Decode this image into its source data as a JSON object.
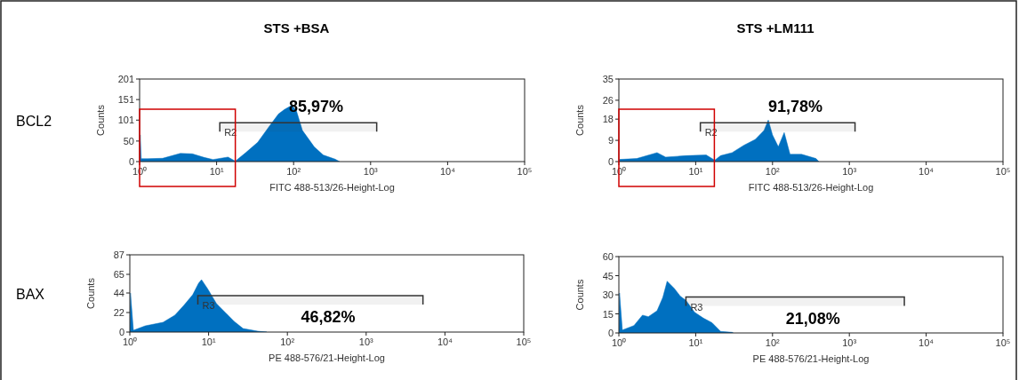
{
  "chart_data": [
    {
      "type": "area",
      "title": "STS +BSA",
      "xlabel": "FITC 488-513/26-Height-Log",
      "ylabel": "Counts",
      "log": "x",
      "xlim": [
        1,
        100000
      ],
      "xticks": [
        {
          "value": 1,
          "label": "10⁰"
        },
        {
          "value": 10,
          "label": "10¹"
        },
        {
          "value": 100,
          "label": "10²"
        },
        {
          "value": 1000,
          "label": "10³"
        },
        {
          "value": 10000,
          "label": "10⁴"
        },
        {
          "value": 100000,
          "label": "10⁵"
        }
      ],
      "ylim": [
        0,
        201
      ],
      "yticks": [
        0,
        50,
        101,
        151,
        201
      ],
      "x": [
        1,
        1.02,
        1.05,
        1.27,
        1.99,
        3.38,
        4.83,
        6.9,
        9.0,
        14.1,
        17.5,
        24,
        34.2,
        48.8,
        63.7,
        76.2,
        95,
        109,
        130,
        185,
        242,
        346,
        395
      ],
      "series": [
        {
          "color": "#0070c0",
          "values": [
            0,
            65,
            7,
            7,
            8,
            20,
            19,
            10,
            5,
            11,
            1,
            22,
            47,
            87,
            116,
            127,
            137,
            123,
            76,
            36,
            16,
            6,
            0
          ]
        }
      ],
      "bands": [
        {
          "axis": "x",
          "from": 11,
          "to": 1200,
          "label": "R2"
        }
      ],
      "annotations": [
        "85,97%",
        "BCL2"
      ]
    },
    {
      "type": "area",
      "title": "STS +LM111",
      "xlabel": "FITC 488-513/26-Height-Log",
      "ylabel": "Counts",
      "log": "x",
      "xlim": [
        1,
        100000
      ],
      "xticks": [
        {
          "value": 1,
          "label": "10⁰"
        },
        {
          "value": 10,
          "label": "10¹"
        },
        {
          "value": 100,
          "label": "10²"
        },
        {
          "value": 1000,
          "label": "10³"
        },
        {
          "value": 10000,
          "label": "10⁴"
        },
        {
          "value": 100000,
          "label": "10⁵"
        }
      ],
      "ylim": [
        0,
        35
      ],
      "yticks": [
        0,
        9,
        18,
        26,
        35
      ],
      "x": [
        1,
        1.02,
        1.71,
        3.14,
        4.07,
        7.46,
        13.7,
        17.7,
        21.1,
        29.8,
        42.2,
        59.7,
        77.4,
        88.1,
        100,
        119,
        142,
        169,
        239,
        368,
        401
      ],
      "series": [
        {
          "color": "#0070c0",
          "values": [
            0,
            0.9,
            1.3,
            3.8,
            1.9,
            2.5,
            2.8,
            0.6,
            2.5,
            3.8,
            6.9,
            9.4,
            13.2,
            17.6,
            11.3,
            6.3,
            12.3,
            3.1,
            3.1,
            1.3,
            0
          ]
        }
      ],
      "bands": [
        {
          "axis": "x",
          "from": 11.5,
          "to": 1186,
          "label": "R2"
        }
      ],
      "annotations": [
        "91,78%"
      ]
    },
    {
      "type": "area",
      "xlabel": "PE 488-576/21-Height-Log",
      "ylabel": "Counts",
      "log": "x",
      "xlim": [
        1,
        100000
      ],
      "xticks": [
        {
          "value": 1,
          "label": "10⁰"
        },
        {
          "value": 10,
          "label": "10¹"
        },
        {
          "value": 100,
          "label": "10²"
        },
        {
          "value": 1000,
          "label": "10³"
        },
        {
          "value": 10000,
          "label": "10⁴"
        },
        {
          "value": 100000,
          "label": "10⁵"
        }
      ],
      "ylim": [
        0,
        87
      ],
      "yticks": [
        0,
        22,
        44,
        65,
        87
      ],
      "x": [
        1,
        1.02,
        1.11,
        1.57,
        2.64,
        3.73,
        4.84,
        6.28,
        7.46,
        8.13,
        9.68,
        12.6,
        16.3,
        21.1,
        27.4,
        42.2,
        54.7
      ],
      "series": [
        {
          "color": "#0070c0",
          "values": [
            0,
            44,
            2,
            7,
            11,
            19,
            30,
            42,
            55,
            59,
            49,
            32,
            22,
            12,
            4,
            1,
            0
          ]
        }
      ],
      "bands": [
        {
          "axis": "x",
          "from": 7.3,
          "to": 5260,
          "label": "R3"
        }
      ],
      "annotations": [
        "46,82%",
        "BAX"
      ]
    },
    {
      "type": "area",
      "xlabel": "PE 488-576/21-Height-Log",
      "ylabel": "Counts",
      "log": "x",
      "xlim": [
        1,
        100000
      ],
      "xticks": [
        {
          "value": 1,
          "label": "10⁰"
        },
        {
          "value": 10,
          "label": "10¹"
        },
        {
          "value": 100,
          "label": "10²"
        },
        {
          "value": 1000,
          "label": "10³"
        },
        {
          "value": 10000,
          "label": "10⁴"
        },
        {
          "value": 100000,
          "label": "10⁵"
        }
      ],
      "ylim": [
        0,
        60
      ],
      "yticks": [
        0,
        15,
        30,
        45,
        60
      ],
      "x": [
        1,
        1.02,
        1.11,
        1.57,
        2.03,
        2.42,
        3.14,
        3.73,
        4.25,
        5.28,
        6.28,
        7.46,
        9.68,
        12.6,
        16.3,
        21.1,
        29.8,
        30.8
      ],
      "series": [
        {
          "color": "#0070c0",
          "values": [
            0,
            31.4,
            2.3,
            5.8,
            14,
            12.8,
            17.4,
            27.9,
            40.7,
            34.9,
            29,
            25.6,
            16.3,
            11.6,
            8.1,
            1.2,
            0.5,
            0
          ]
        }
      ],
      "bands": [
        {
          "axis": "x",
          "from": 7.46,
          "to": 5200,
          "label": "R3"
        }
      ],
      "annotations": [
        "21,08%"
      ]
    }
  ]
}
